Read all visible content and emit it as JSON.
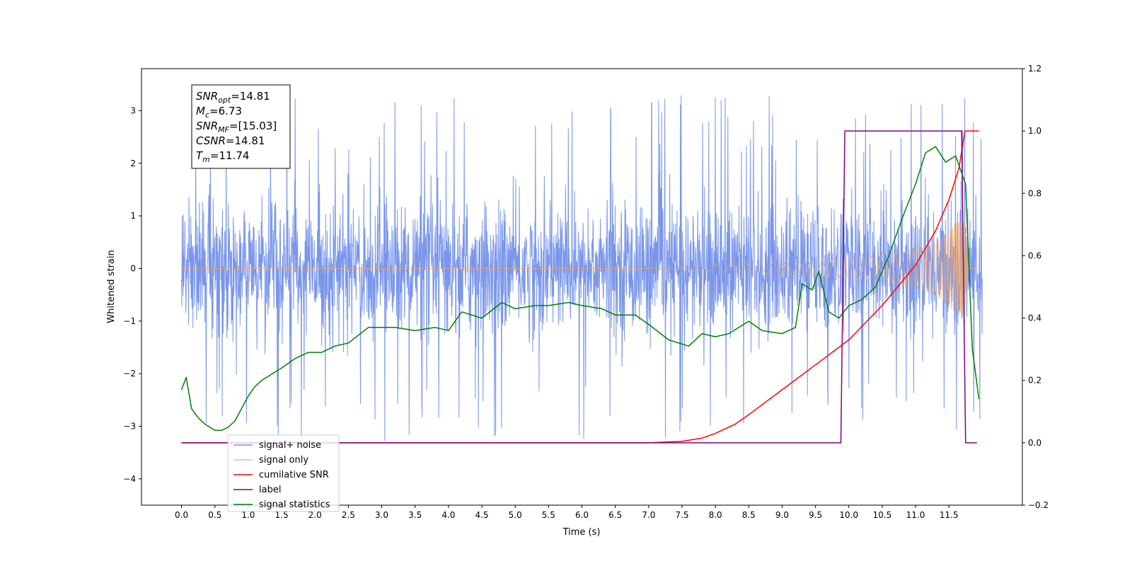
{
  "chart_data": {
    "type": "line",
    "xlabel": "Time (s)",
    "ylabel_left": "Whitened strain",
    "xlim": [
      -0.6,
      12.6
    ],
    "ylim_left": [
      -4.5,
      3.8
    ],
    "ylim_right": [
      -0.2,
      1.2
    ],
    "x_ticks": [
      "0.0",
      "0.5",
      "1.0",
      "1.5",
      "2.0",
      "2.5",
      "3.0",
      "3.5",
      "4.0",
      "4.5",
      "5.0",
      "5.5",
      "6.0",
      "6.5",
      "7.0",
      "7.5",
      "8.0",
      "8.5",
      "9.0",
      "9.5",
      "10.0",
      "10.5",
      "11.0",
      "11.5"
    ],
    "y_left_ticks": [
      "3",
      "2",
      "1",
      "0",
      "−1",
      "−2",
      "−3",
      "−4"
    ],
    "y_right_ticks": [
      "1.2",
      "1.0",
      "0.8",
      "0.6",
      "0.4",
      "0.2",
      "0.0",
      "−0.2"
    ],
    "grid": false,
    "legend_position": "lower-left",
    "annotation": [
      {
        "name": "SNR",
        "sub": "opt",
        "value": "=14.81"
      },
      {
        "name": "M",
        "sub": "c",
        "value": "=6.73"
      },
      {
        "name": "SNR",
        "sub": "MF",
        "value": "=[15.03]"
      },
      {
        "name": "CSNR",
        "sub": "",
        "value": "=14.81"
      },
      {
        "name": "T",
        "sub": "m",
        "value": "=11.74"
      }
    ],
    "series": [
      {
        "name": "signal+ noise",
        "color": "#4169e1",
        "axis": "left",
        "note": "whitened noise, amplitude ≈ ±1.7 with spikes to ±3.3",
        "x_range": [
          0.0,
          12.0
        ]
      },
      {
        "name": "signal only",
        "color": "#f4a460",
        "axis": "left",
        "note": "chirp; amplitude grows from ≈0 near 7.0 s to ≈1.1 at 11.7 s",
        "envelope": {
          "x": [
            7.0,
            7.5,
            8.0,
            8.5,
            9.0,
            9.5,
            10.0,
            10.5,
            11.0,
            11.3,
            11.5,
            11.65,
            11.74,
            11.78
          ],
          "y": [
            0.0,
            0.03,
            0.07,
            0.1,
            0.13,
            0.16,
            0.2,
            0.26,
            0.38,
            0.5,
            0.7,
            0.95,
            0.9,
            0.0
          ]
        }
      },
      {
        "name": "cumilative SNR",
        "color": "#ff0000",
        "axis": "right",
        "x": [
          0.0,
          7.0,
          7.5,
          7.8,
          8.0,
          8.3,
          8.5,
          9.0,
          9.5,
          10.0,
          10.5,
          11.0,
          11.3,
          11.5,
          11.65,
          11.74,
          11.76,
          11.95
        ],
        "y": [
          0.0,
          0.0,
          0.005,
          0.015,
          0.03,
          0.06,
          0.09,
          0.17,
          0.25,
          0.33,
          0.44,
          0.57,
          0.68,
          0.78,
          0.88,
          1.0,
          1.0,
          1.0
        ]
      },
      {
        "name": "label",
        "color": "#800080",
        "axis": "right",
        "x": [
          0.0,
          9.88,
          9.94,
          11.69,
          11.75,
          11.92
        ],
        "y": [
          0.0,
          0.0,
          1.0,
          1.0,
          0.0,
          0.0
        ]
      },
      {
        "name": "signal statistics",
        "color": "#008000",
        "axis": "right",
        "x": [
          0.0,
          0.07,
          0.15,
          0.25,
          0.35,
          0.5,
          0.6,
          0.7,
          0.8,
          0.9,
          1.0,
          1.1,
          1.2,
          1.35,
          1.5,
          1.7,
          1.9,
          2.1,
          2.3,
          2.5,
          2.8,
          3.0,
          3.2,
          3.5,
          3.8,
          4.0,
          4.2,
          4.5,
          4.8,
          5.0,
          5.3,
          5.5,
          5.8,
          6.0,
          6.3,
          6.5,
          6.8,
          7.0,
          7.3,
          7.6,
          7.8,
          8.0,
          8.2,
          8.5,
          8.7,
          9.0,
          9.2,
          9.3,
          9.45,
          9.55,
          9.7,
          9.85,
          10.0,
          10.2,
          10.4,
          10.6,
          10.8,
          11.0,
          11.15,
          11.3,
          11.45,
          11.6,
          11.75,
          11.85,
          11.95
        ],
        "y": [
          0.17,
          0.21,
          0.11,
          0.08,
          0.06,
          0.04,
          0.04,
          0.05,
          0.07,
          0.11,
          0.15,
          0.18,
          0.2,
          0.22,
          0.24,
          0.27,
          0.29,
          0.29,
          0.31,
          0.32,
          0.37,
          0.37,
          0.37,
          0.36,
          0.37,
          0.36,
          0.42,
          0.4,
          0.45,
          0.43,
          0.44,
          0.44,
          0.45,
          0.44,
          0.43,
          0.41,
          0.41,
          0.38,
          0.33,
          0.31,
          0.35,
          0.34,
          0.35,
          0.39,
          0.36,
          0.35,
          0.37,
          0.51,
          0.49,
          0.55,
          0.42,
          0.4,
          0.44,
          0.46,
          0.5,
          0.6,
          0.72,
          0.83,
          0.93,
          0.95,
          0.9,
          0.92,
          0.83,
          0.3,
          0.14
        ]
      }
    ]
  }
}
